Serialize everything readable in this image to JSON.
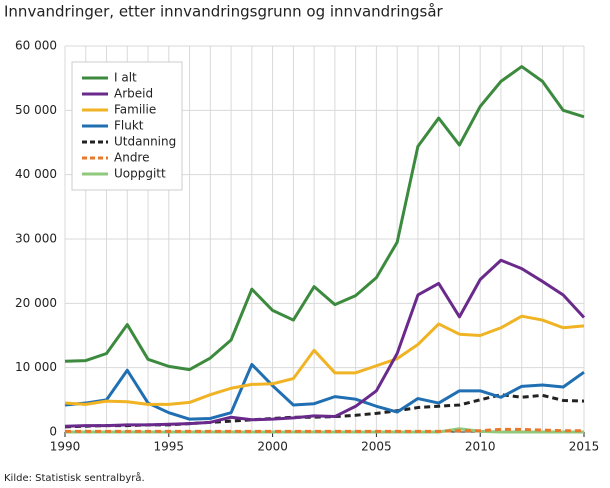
{
  "chart_data": {
    "type": "line",
    "title": "Innvandringer, etter innvandringsgrunn og innvandringsår",
    "source": "Kilde: Statistisk sentralbyrå.",
    "x": [
      1990,
      1991,
      1992,
      1993,
      1994,
      1995,
      1996,
      1997,
      1998,
      1999,
      2000,
      2001,
      2002,
      2003,
      2004,
      2005,
      2006,
      2007,
      2008,
      2009,
      2010,
      2011,
      2012,
      2013,
      2014,
      2015
    ],
    "xlim": [
      1990,
      2015
    ],
    "xticks": [
      1990,
      1995,
      2000,
      2005,
      2010,
      2015
    ],
    "ylim": [
      0,
      60000
    ],
    "yticks": [
      0,
      {
        "value": 10000,
        "label": "10 000"
      },
      {
        "value": 20000,
        "label": "20 000"
      },
      {
        "value": 30000,
        "label": "30 000"
      },
      {
        "value": 40000,
        "label": "40 000"
      },
      {
        "value": 50000,
        "label": "50 000"
      },
      {
        "value": 60000,
        "label": "60 000"
      }
    ],
    "grid": true,
    "legend": "top-left",
    "series": [
      {
        "name": "I alt",
        "color": "#3b8a3e",
        "dashed": false,
        "values": [
          11000,
          11100,
          12200,
          16700,
          11300,
          10200,
          9700,
          11500,
          14300,
          22200,
          18900,
          17400,
          22600,
          19800,
          21200,
          24000,
          29500,
          44400,
          48800,
          44600,
          50600,
          54500,
          56800,
          54500,
          50000,
          49000
        ]
      },
      {
        "name": "Arbeid",
        "color": "#6a2a8c",
        "dashed": false,
        "values": [
          900,
          1000,
          1000,
          1100,
          1100,
          1200,
          1300,
          1500,
          2300,
          1900,
          2000,
          2200,
          2500,
          2400,
          4000,
          6400,
          12200,
          21300,
          23100,
          17900,
          23700,
          26700,
          25400,
          23400,
          21300,
          17800
        ]
      },
      {
        "name": "Familie",
        "color": "#f0b323",
        "dashed": false,
        "values": [
          4500,
          4300,
          4800,
          4700,
          4300,
          4300,
          4600,
          5800,
          6800,
          7400,
          7500,
          8300,
          12700,
          9200,
          9200,
          10300,
          11400,
          13600,
          16800,
          15200,
          15000,
          16200,
          18000,
          17400,
          16200,
          16500
        ]
      },
      {
        "name": "Flukt",
        "color": "#1f6fb2",
        "dashed": false,
        "values": [
          4200,
          4500,
          5000,
          9600,
          4500,
          3000,
          2000,
          2100,
          3000,
          10500,
          7200,
          4200,
          4400,
          5500,
          5100,
          4000,
          3100,
          5200,
          4500,
          6400,
          6400,
          5400,
          7100,
          7300,
          7000,
          9300
        ]
      },
      {
        "name": "Utdanning",
        "color": "#222222",
        "dashed": true,
        "values": [
          800,
          900,
          1000,
          1000,
          1100,
          1100,
          1300,
          1500,
          1700,
          1900,
          2100,
          2300,
          2300,
          2400,
          2600,
          2900,
          3300,
          3800,
          4000,
          4200,
          5000,
          5800,
          5400,
          5700,
          4900,
          4800
        ]
      },
      {
        "name": "Andre",
        "color": "#e8792a",
        "dashed": true,
        "values": [
          100,
          100,
          100,
          100,
          100,
          100,
          100,
          100,
          100,
          100,
          100,
          100,
          100,
          100,
          100,
          100,
          100,
          100,
          100,
          200,
          200,
          400,
          400,
          300,
          200,
          200
        ]
      },
      {
        "name": "Uoppgitt",
        "color": "#90c97c",
        "dashed": false,
        "values": [
          0,
          0,
          0,
          0,
          0,
          0,
          0,
          0,
          0,
          0,
          0,
          0,
          0,
          0,
          0,
          0,
          0,
          0,
          0,
          500,
          100,
          0,
          0,
          0,
          0,
          0
        ]
      }
    ]
  }
}
